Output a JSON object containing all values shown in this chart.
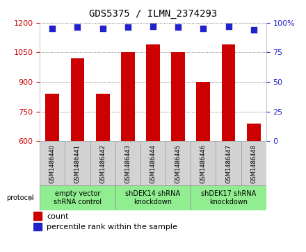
{
  "title": "GDS5375 / ILMN_2374293",
  "samples": [
    "GSM1486440",
    "GSM1486441",
    "GSM1486442",
    "GSM1486443",
    "GSM1486444",
    "GSM1486445",
    "GSM1486446",
    "GSM1486447",
    "GSM1486448"
  ],
  "counts": [
    840,
    1020,
    840,
    1050,
    1090,
    1050,
    900,
    1090,
    690
  ],
  "percentile_ranks": [
    95,
    96,
    95,
    96,
    97,
    96,
    95,
    97,
    94
  ],
  "ylim_left": [
    600,
    1200
  ],
  "ylim_right": [
    0,
    100
  ],
  "yticks_left": [
    600,
    750,
    900,
    1050,
    1200
  ],
  "yticks_right": [
    0,
    25,
    50,
    75,
    100
  ],
  "yticklabels_right": [
    "0",
    "25",
    "50",
    "75",
    "100%"
  ],
  "bar_color": "#cc0000",
  "dot_color": "#2222cc",
  "groups": [
    {
      "label": "empty vector\nshRNA control",
      "start": 0,
      "end": 3
    },
    {
      "label": "shDEK14 shRNA\nknockdown",
      "start": 3,
      "end": 6
    },
    {
      "label": "shDEK17 shRNA\nknockdown",
      "start": 6,
      "end": 9
    }
  ],
  "group_bg_color": "#90ee90",
  "sample_box_color": "#d3d3d3",
  "protocol_label": "protocol",
  "legend_count_label": "count",
  "legend_percentile_label": "percentile rank within the sample",
  "bar_width": 0.55,
  "dot_size": 30,
  "background_color": "#ffffff",
  "tick_color_left": "#cc0000",
  "tick_color_right": "#2222cc",
  "grid_linestyle": "dotted",
  "grid_color": "#555555",
  "title_fontsize": 10,
  "tick_fontsize": 8,
  "sample_fontsize": 6,
  "group_fontsize": 7,
  "legend_fontsize": 8
}
